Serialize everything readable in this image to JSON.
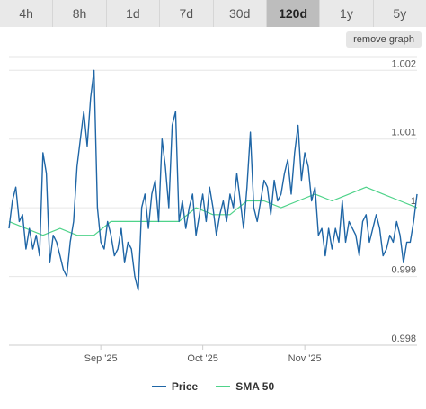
{
  "tabs": [
    {
      "label": "4h",
      "active": false
    },
    {
      "label": "8h",
      "active": false
    },
    {
      "label": "1d",
      "active": false
    },
    {
      "label": "7d",
      "active": false
    },
    {
      "label": "30d",
      "active": false
    },
    {
      "label": "120d",
      "active": true
    },
    {
      "label": "1y",
      "active": false
    },
    {
      "label": "5y",
      "active": false
    }
  ],
  "remove_graph_label": "remove graph",
  "colors": {
    "price": "#1f66a6",
    "sma": "#4fd38a",
    "grid": "#e6e6e6"
  },
  "chart_data": {
    "type": "line",
    "ylim": [
      0.998,
      1.0022
    ],
    "yticks": [
      0.998,
      0.999,
      1,
      1.001,
      1.002
    ],
    "ytick_labels": [
      "0.998",
      "0.999",
      "1",
      "1.001",
      "1.002"
    ],
    "xlim": [
      0,
      120
    ],
    "xticks": [
      27,
      57,
      87
    ],
    "xtick_labels": [
      "Sep '25",
      "Oct '25",
      "Nov '25"
    ],
    "grid": true,
    "legend_position": "bottom",
    "series": [
      {
        "name": "Price",
        "color": "#1f66a6",
        "x": [
          0,
          1,
          2,
          3,
          4,
          5,
          6,
          7,
          8,
          9,
          10,
          11,
          12,
          13,
          14,
          15,
          16,
          17,
          18,
          19,
          20,
          21,
          22,
          23,
          24,
          25,
          26,
          27,
          28,
          29,
          30,
          31,
          32,
          33,
          34,
          35,
          36,
          37,
          38,
          39,
          40,
          41,
          42,
          43,
          44,
          45,
          46,
          47,
          48,
          49,
          50,
          51,
          52,
          53,
          54,
          55,
          56,
          57,
          58,
          59,
          60,
          61,
          62,
          63,
          64,
          65,
          66,
          67,
          68,
          69,
          70,
          71,
          72,
          73,
          74,
          75,
          76,
          77,
          78,
          79,
          80,
          81,
          82,
          83,
          84,
          85,
          86,
          87,
          88,
          89,
          90,
          91,
          92,
          93,
          94,
          95,
          96,
          97,
          98,
          99,
          100,
          101,
          102,
          103,
          104,
          105,
          106,
          107,
          108,
          109,
          110,
          111,
          112,
          113,
          114,
          115,
          116,
          117,
          118,
          119,
          120
        ],
        "y": [
          0.9997,
          1.0001,
          1.0003,
          0.9998,
          0.9999,
          0.9994,
          0.9997,
          0.9994,
          0.9996,
          0.9993,
          1.0008,
          1.0005,
          0.9992,
          0.9996,
          0.9995,
          0.9993,
          0.9991,
          0.999,
          0.9995,
          0.9998,
          1.0006,
          1.001,
          1.0014,
          1.0009,
          1.0016,
          1.002,
          1.0,
          0.9995,
          0.9994,
          0.9998,
          0.9996,
          0.9993,
          0.9994,
          0.9997,
          0.9992,
          0.9995,
          0.9994,
          0.999,
          0.9988,
          1.0,
          1.0002,
          0.9997,
          1.0002,
          1.0004,
          0.9998,
          1.001,
          1.0006,
          1.0,
          1.0012,
          1.0014,
          0.9998,
          1.0001,
          0.9997,
          1.0,
          1.0002,
          0.9996,
          0.9999,
          1.0002,
          0.9998,
          1.0003,
          1.0,
          0.9996,
          0.9999,
          1.0001,
          0.9998,
          1.0002,
          1.0,
          1.0005,
          1.0001,
          0.9997,
          1.0003,
          1.0011,
          1.0,
          0.9998,
          1.0001,
          1.0004,
          1.0003,
          0.9999,
          1.0004,
          1.0001,
          1.0002,
          1.0005,
          1.0007,
          1.0002,
          1.0008,
          1.0012,
          1.0004,
          1.0008,
          1.0006,
          1.0001,
          1.0003,
          0.9996,
          0.9997,
          0.9993,
          0.9997,
          0.9994,
          0.9997,
          0.9995,
          1.0001,
          0.9995,
          0.9998,
          0.9997,
          0.9996,
          0.9993,
          0.9998,
          0.9999,
          0.9995,
          0.9997,
          0.9999,
          0.9997,
          0.9993,
          0.9994,
          0.9996,
          0.9995,
          0.9998,
          0.9996,
          0.9992,
          0.9995,
          0.9995,
          0.9998,
          1.0002
        ]
      },
      {
        "name": "SMA 50",
        "color": "#4fd38a",
        "x": [
          0,
          5,
          10,
          15,
          20,
          25,
          30,
          35,
          40,
          45,
          50,
          55,
          60,
          65,
          70,
          75,
          80,
          85,
          90,
          95,
          100,
          105,
          110,
          115,
          120
        ],
        "y": [
          0.9998,
          0.9997,
          0.9996,
          0.9997,
          0.9996,
          0.9996,
          0.9998,
          0.9998,
          0.9998,
          0.9998,
          0.9998,
          1.0,
          0.9999,
          0.9999,
          1.0001,
          1.0001,
          1.0,
          1.0001,
          1.0002,
          1.0001,
          1.0002,
          1.0003,
          1.0002,
          1.0001,
          1.0
        ]
      }
    ]
  }
}
